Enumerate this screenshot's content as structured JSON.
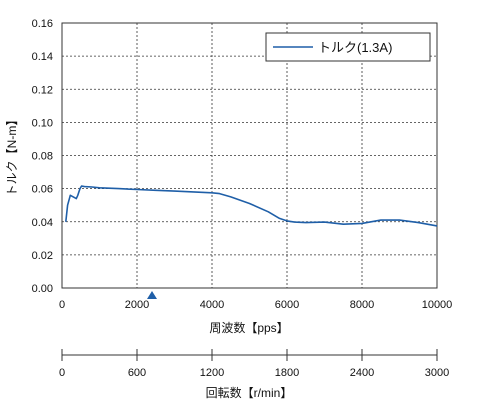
{
  "chart_data": {
    "type": "line",
    "xlabel": "周波数【pps】",
    "ylabel": "トルク【N-m】",
    "xlim": [
      0,
      10000
    ],
    "ylim": [
      0,
      0.16
    ],
    "x_ticks": [
      "0",
      "2000",
      "4000",
      "6000",
      "8000",
      "10000"
    ],
    "y_ticks": [
      "0.00",
      "0.02",
      "0.04",
      "0.06",
      "0.08",
      "0.10",
      "0.12",
      "0.14",
      "0.16"
    ],
    "grid": true,
    "legend_position": "top-right",
    "series": [
      {
        "name": "トルク(1.3A)",
        "color": "#1f5fa8",
        "x": [
          100,
          150,
          220,
          300,
          380,
          420,
          450,
          480,
          520,
          600,
          800,
          1000,
          1500,
          2000,
          2500,
          3000,
          3500,
          4000,
          4200,
          4500,
          5000,
          5500,
          5800,
          6000,
          6200,
          6500,
          7000,
          7500,
          8000,
          8500,
          9000,
          9500,
          10000
        ],
        "y": [
          0.04,
          0.05,
          0.056,
          0.055,
          0.054,
          0.056,
          0.058,
          0.06,
          0.0615,
          0.0612,
          0.061,
          0.0605,
          0.06,
          0.0595,
          0.059,
          0.0585,
          0.058,
          0.0575,
          0.057,
          0.055,
          0.051,
          0.046,
          0.042,
          0.0405,
          0.0398,
          0.0395,
          0.0398,
          0.0385,
          0.039,
          0.041,
          0.041,
          0.0395,
          0.0375
        ]
      }
    ],
    "marker": {
      "x": 2400,
      "shape": "triangle",
      "color": "#1f5fa8"
    },
    "secondary_axis": {
      "label": "回転数【r/min】",
      "range": [
        0,
        3000
      ],
      "ticks": [
        "0",
        "600",
        "1200",
        "1800",
        "2400",
        "3000"
      ]
    }
  }
}
